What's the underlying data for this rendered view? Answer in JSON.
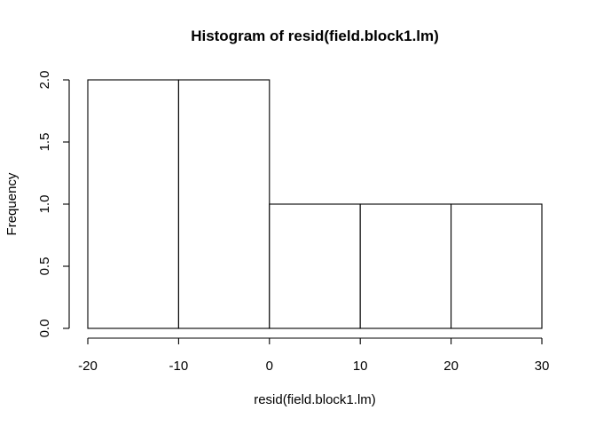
{
  "chart_data": {
    "type": "bar",
    "subtype": "histogram",
    "title": "Histogram of resid(field.block1.lm)",
    "xlabel": "resid(field.block1.lm)",
    "ylabel": "Frequency",
    "bins": [
      {
        "start": -20,
        "end": -10,
        "count": 2
      },
      {
        "start": -10,
        "end": 0,
        "count": 2
      },
      {
        "start": 0,
        "end": 10,
        "count": 1
      },
      {
        "start": 10,
        "end": 20,
        "count": 1
      },
      {
        "start": 20,
        "end": 30,
        "count": 1
      }
    ],
    "xlim": [
      -20,
      30
    ],
    "ylim": [
      0,
      2
    ],
    "xticks": [
      -20,
      -10,
      0,
      10,
      20,
      30
    ],
    "xtick_labels": [
      "-20",
      "-10",
      "0",
      "10",
      "20",
      "30"
    ],
    "yticks": [
      0,
      0.5,
      1,
      1.5,
      2
    ],
    "ytick_labels": [
      "0.0",
      "0.5",
      "1.0",
      "1.5",
      "2.0"
    ],
    "grid": false,
    "bar_fill": "#ffffff",
    "bar_stroke": "#000000"
  }
}
